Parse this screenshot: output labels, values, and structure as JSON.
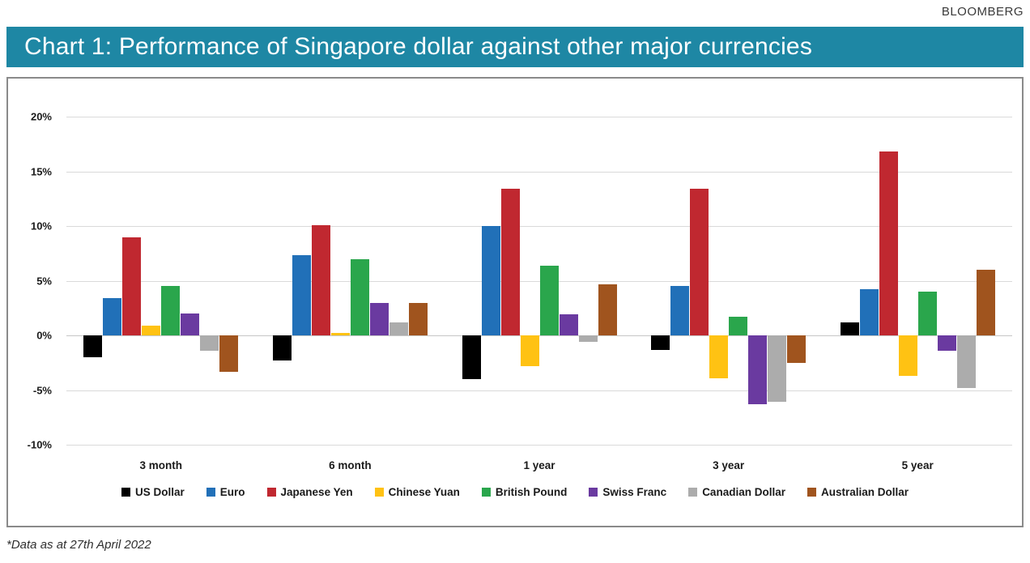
{
  "page": {
    "attribution": "BLOOMBERG",
    "title": "Chart 1: Performance of Singapore dollar against other major currencies",
    "footnote": "*Data as at 27th April 2022"
  },
  "colors": {
    "header_bg": "#1E87A4",
    "header_text": "#FFFFFF",
    "panel_border": "#8A8A8A",
    "gridline": "#DADADA",
    "zero_line": "#C7C7C7",
    "tick_text": "#1A1A1A"
  },
  "chart_data": {
    "type": "bar",
    "title": "Chart 1: Performance of Singapore dollar against other major currencies",
    "categories": [
      "3 month",
      "6 month",
      "1 year",
      "3 year",
      "5 year"
    ],
    "series": [
      {
        "name": "US Dollar",
        "color": "#000000",
        "values": [
          -2.0,
          -2.3,
          -4.0,
          -1.3,
          1.2
        ]
      },
      {
        "name": "Euro",
        "color": "#2170B8",
        "values": [
          3.4,
          7.3,
          10.0,
          4.5,
          4.2
        ]
      },
      {
        "name": "Japanese Yen",
        "color": "#C02830",
        "values": [
          9.0,
          10.1,
          13.4,
          13.4,
          16.8
        ]
      },
      {
        "name": "Chinese Yuan",
        "color": "#FFC213",
        "values": [
          0.9,
          0.2,
          -2.8,
          -3.9,
          -3.7
        ]
      },
      {
        "name": "British Pound",
        "color": "#2AA64C",
        "values": [
          4.5,
          7.0,
          6.4,
          1.7,
          4.0
        ]
      },
      {
        "name": "Swiss Franc",
        "color": "#6A3AA0",
        "values": [
          2.0,
          3.0,
          1.9,
          -6.3,
          -1.4
        ]
      },
      {
        "name": "Canadian Dollar",
        "color": "#ACACAC",
        "values": [
          -1.4,
          1.2,
          -0.6,
          -6.1,
          -4.8
        ]
      },
      {
        "name": "Australian Dollar",
        "color": "#A0541E",
        "values": [
          -3.3,
          3.0,
          4.7,
          -2.5,
          6.0
        ]
      }
    ],
    "ylim": [
      -10,
      20
    ],
    "ytick_step": 5,
    "ytick_labels": [
      "20%",
      "15%",
      "10%",
      "5%",
      "0%",
      "-5%",
      "-10%"
    ],
    "grid": true,
    "legend_position": "bottom"
  }
}
